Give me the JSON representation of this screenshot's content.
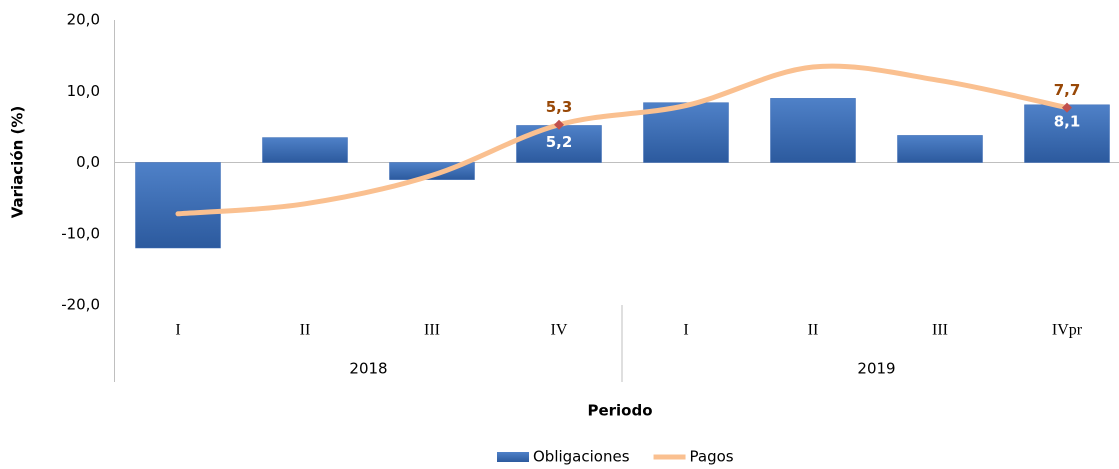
{
  "chart_data": {
    "type": "bar-line",
    "y_label": "Variación (%)",
    "x_label": "Periodo",
    "categories": [
      "I",
      "II",
      "III",
      "IV",
      "I",
      "II",
      "III",
      "IVpr"
    ],
    "groups": [
      "2018",
      "2019"
    ],
    "series": [
      {
        "name": "Obligaciones",
        "type": "bar",
        "color": "#3a6bb5",
        "values": [
          -12.0,
          3.5,
          -2.4,
          5.2,
          8.4,
          9.0,
          3.8,
          8.1
        ],
        "value_labels": [
          null,
          null,
          null,
          "5,2",
          null,
          null,
          null,
          "8,1"
        ],
        "label_color": "#ffffff"
      },
      {
        "name": "Pagos",
        "type": "line",
        "color": "#fac090",
        "marker_color": "#c0504d",
        "values": [
          -7.2,
          -5.8,
          -1.8,
          5.3,
          8.0,
          13.4,
          11.5,
          7.7
        ],
        "value_labels": [
          null,
          null,
          null,
          "5,3",
          null,
          null,
          null,
          "7,7"
        ],
        "label_color": "#984807"
      }
    ],
    "ylim": [
      -20,
      20
    ],
    "yticks": [
      {
        "value": -20,
        "label": "-20,0"
      },
      {
        "value": -10,
        "label": "-10,0"
      },
      {
        "value": 0,
        "label": "0,0"
      },
      {
        "value": 10,
        "label": "10,0"
      },
      {
        "value": 20,
        "label": "20,0"
      }
    ],
    "grid": false,
    "legend": "bottom"
  }
}
